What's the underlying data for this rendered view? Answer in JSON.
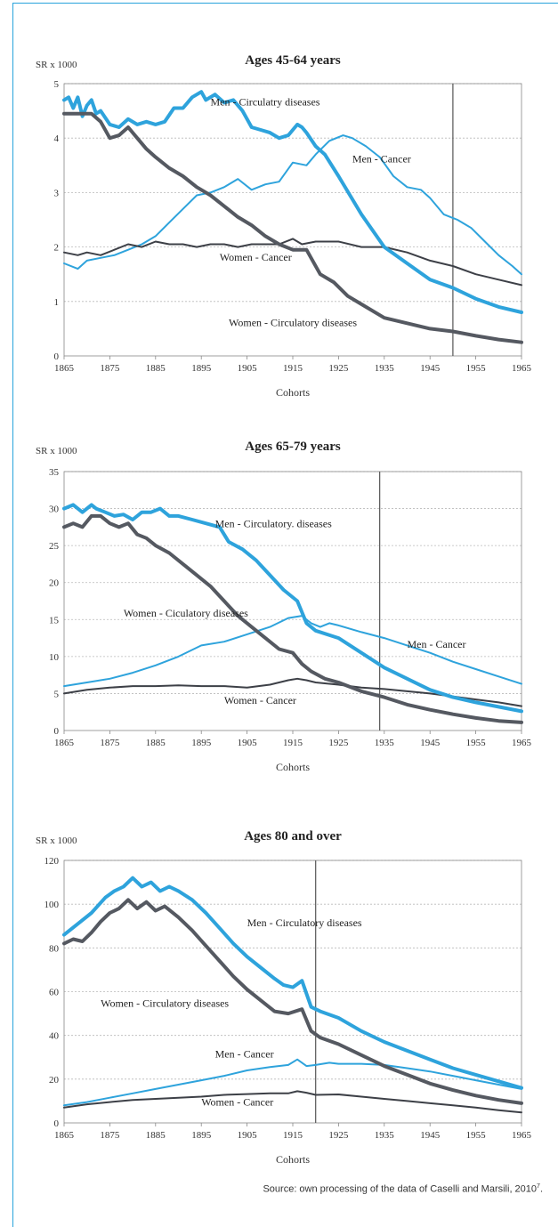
{
  "source_text": "Source: own processing of the data of Caselli and Marsili, 2010",
  "source_sup": "7",
  "colors": {
    "men_circulatory": "#2ea3dc",
    "men_cancer": "#2ea3dc",
    "women_circulatory": "#555961",
    "women_cancer": "#3d4047",
    "axis": "#888888",
    "grid": "#b9b9b9",
    "marker_line": "#555555",
    "frame": "#29a3dc"
  },
  "chart_data": [
    {
      "type": "line",
      "title": "Ages 45-64 years",
      "ylabel": "SR x 1000",
      "xlabel": "Cohorts",
      "xlim": [
        1865,
        1965
      ],
      "ylim": [
        0,
        5
      ],
      "yticks": [
        "0",
        "1",
        "2",
        "3",
        "4",
        "5"
      ],
      "xticks": [
        "1865",
        "1875",
        "1885",
        "1895",
        "1905",
        "1915",
        "1925",
        "1935",
        "1945",
        "1955",
        "1965"
      ],
      "grid": true,
      "vline_x": 1950,
      "series": [
        {
          "name": "Men - Circulatry diseases",
          "style": "thick",
          "color": "#2ea3dc",
          "x": [
            1865,
            1866,
            1867,
            1868,
            1869,
            1870,
            1871,
            1872,
            1873,
            1875,
            1877,
            1879,
            1881,
            1883,
            1885,
            1887,
            1889,
            1891,
            1893,
            1895,
            1896,
            1898,
            1900,
            1902,
            1904,
            1906,
            1908,
            1910,
            1912,
            1914,
            1916,
            1917,
            1918,
            1920,
            1922,
            1925,
            1930,
            1935,
            1940,
            1945,
            1950,
            1955,
            1960,
            1965
          ],
          "y": [
            4.7,
            4.75,
            4.55,
            4.75,
            4.4,
            4.6,
            4.7,
            4.45,
            4.5,
            4.25,
            4.2,
            4.35,
            4.25,
            4.3,
            4.25,
            4.3,
            4.55,
            4.55,
            4.75,
            4.85,
            4.7,
            4.8,
            4.65,
            4.7,
            4.5,
            4.2,
            4.15,
            4.1,
            4.0,
            4.05,
            4.25,
            4.2,
            4.1,
            3.85,
            3.7,
            3.3,
            2.6,
            2.0,
            1.7,
            1.4,
            1.25,
            1.05,
            0.9,
            0.8
          ]
        },
        {
          "name": "Men - Cancer",
          "style": "thin",
          "color": "#2ea3dc",
          "x": [
            1865,
            1868,
            1870,
            1873,
            1876,
            1879,
            1882,
            1885,
            1888,
            1891,
            1894,
            1897,
            1900,
            1903,
            1906,
            1909,
            1912,
            1915,
            1918,
            1920,
            1923,
            1926,
            1928,
            1931,
            1934,
            1937,
            1940,
            1943,
            1945,
            1948,
            1951,
            1954,
            1957,
            1960,
            1963,
            1965
          ],
          "y": [
            1.7,
            1.6,
            1.75,
            1.8,
            1.85,
            1.95,
            2.05,
            2.2,
            2.45,
            2.7,
            2.95,
            3.0,
            3.1,
            3.25,
            3.05,
            3.15,
            3.2,
            3.55,
            3.5,
            3.7,
            3.95,
            4.05,
            4.0,
            3.85,
            3.65,
            3.3,
            3.1,
            3.05,
            2.9,
            2.6,
            2.5,
            2.35,
            2.1,
            1.85,
            1.65,
            1.5
          ]
        },
        {
          "name": "Women - Circulatory diseases",
          "style": "thick",
          "color": "#555961",
          "x": [
            1865,
            1868,
            1871,
            1873,
            1875,
            1877,
            1879,
            1881,
            1883,
            1885,
            1888,
            1891,
            1894,
            1897,
            1900,
            1903,
            1906,
            1909,
            1912,
            1915,
            1918,
            1921,
            1924,
            1927,
            1930,
            1935,
            1940,
            1945,
            1950,
            1955,
            1960,
            1965
          ],
          "y": [
            4.45,
            4.45,
            4.45,
            4.3,
            4.0,
            4.05,
            4.2,
            4.0,
            3.8,
            3.65,
            3.45,
            3.3,
            3.1,
            2.95,
            2.75,
            2.55,
            2.4,
            2.2,
            2.05,
            1.95,
            1.95,
            1.5,
            1.35,
            1.1,
            0.95,
            0.7,
            0.6,
            0.5,
            0.45,
            0.37,
            0.3,
            0.25
          ]
        },
        {
          "name": "Women - Cancer",
          "style": "thin",
          "color": "#3d4047",
          "x": [
            1865,
            1868,
            1870,
            1873,
            1876,
            1879,
            1882,
            1885,
            1888,
            1891,
            1894,
            1897,
            1900,
            1903,
            1906,
            1909,
            1912,
            1915,
            1917,
            1920,
            1925,
            1930,
            1935,
            1940,
            1945,
            1950,
            1955,
            1960,
            1965
          ],
          "y": [
            1.9,
            1.85,
            1.9,
            1.85,
            1.95,
            2.05,
            2.0,
            2.1,
            2.05,
            2.05,
            2.0,
            2.05,
            2.05,
            2.0,
            2.05,
            2.05,
            2.05,
            2.15,
            2.05,
            2.1,
            2.1,
            2.0,
            2.0,
            1.9,
            1.75,
            1.65,
            1.5,
            1.4,
            1.3
          ]
        }
      ],
      "annotations": [
        {
          "text": "Men - Circulatry diseases",
          "x": 1897,
          "y": 4.6
        },
        {
          "text": "Men - Cancer",
          "x": 1928,
          "y": 3.55
        },
        {
          "text": "Women - Cancer",
          "x": 1899,
          "y": 1.75
        },
        {
          "text": "Women - Circulatory diseases",
          "x": 1901,
          "y": 0.55
        }
      ]
    },
    {
      "type": "line",
      "title": "Ages 65-79 years",
      "ylabel": "SR x 1000",
      "xlabel": "Cohorts",
      "xlim": [
        1865,
        1965
      ],
      "ylim": [
        0,
        35
      ],
      "yticks": [
        "0",
        "5",
        "10",
        "15",
        "20",
        "25",
        "30",
        "35"
      ],
      "xticks": [
        "1865",
        "1875",
        "1885",
        "1895",
        "1905",
        "1915",
        "1925",
        "1935",
        "1945",
        "1955",
        "1965"
      ],
      "grid": true,
      "vline_x": 1934,
      "series": [
        {
          "name": "Men - Circulatory. diseases",
          "style": "thick",
          "color": "#2ea3dc",
          "x": [
            1865,
            1867,
            1869,
            1871,
            1872,
            1874,
            1876,
            1878,
            1880,
            1882,
            1884,
            1886,
            1888,
            1890,
            1893,
            1896,
            1899,
            1901,
            1904,
            1907,
            1910,
            1913,
            1916,
            1918,
            1920,
            1925,
            1930,
            1935,
            1940,
            1945,
            1950,
            1955,
            1960,
            1965
          ],
          "y": [
            30,
            30.5,
            29.5,
            30.5,
            30,
            29.5,
            29,
            29.2,
            28.5,
            29.5,
            29.5,
            30,
            29,
            29,
            28.5,
            28,
            27.5,
            25.5,
            24.5,
            23,
            21,
            19,
            17.5,
            14.5,
            13.5,
            12.5,
            10.5,
            8.5,
            7,
            5.5,
            4.5,
            3.8,
            3.2,
            2.6
          ]
        },
        {
          "name": "Men - Cancer",
          "style": "thin",
          "color": "#2ea3dc",
          "x": [
            1865,
            1870,
            1875,
            1880,
            1885,
            1890,
            1895,
            1900,
            1905,
            1910,
            1914,
            1917,
            1919,
            1921,
            1923,
            1925,
            1930,
            1935,
            1940,
            1945,
            1950,
            1955,
            1960,
            1965
          ],
          "y": [
            6,
            6.5,
            7,
            7.8,
            8.8,
            10,
            11.5,
            12,
            13,
            14,
            15.2,
            15.5,
            14.5,
            14,
            14.5,
            14.2,
            13.3,
            12.5,
            11.5,
            10.5,
            9.3,
            8.3,
            7.3,
            6.3
          ]
        },
        {
          "name": "Women - Ciculatory diseases",
          "style": "thick",
          "color": "#555961",
          "x": [
            1865,
            1867,
            1869,
            1871,
            1873,
            1875,
            1877,
            1879,
            1881,
            1883,
            1885,
            1888,
            1891,
            1894,
            1897,
            1900,
            1903,
            1906,
            1909,
            1912,
            1915,
            1917,
            1919,
            1922,
            1925,
            1930,
            1935,
            1940,
            1945,
            1950,
            1955,
            1960,
            1965
          ],
          "y": [
            27.5,
            28,
            27.5,
            29,
            29,
            28,
            27.5,
            28,
            26.5,
            26,
            25,
            24,
            22.5,
            21,
            19.5,
            17.5,
            15.5,
            14,
            12.5,
            11,
            10.5,
            9,
            8,
            7,
            6.5,
            5.3,
            4.5,
            3.5,
            2.8,
            2.2,
            1.7,
            1.3,
            1.1
          ]
        },
        {
          "name": "Women - Cancer",
          "style": "thin",
          "color": "#3d4047",
          "x": [
            1865,
            1870,
            1875,
            1880,
            1885,
            1890,
            1895,
            1900,
            1905,
            1910,
            1914,
            1916,
            1918,
            1920,
            1925,
            1930,
            1935,
            1940,
            1945,
            1950,
            1955,
            1960,
            1965
          ],
          "y": [
            5,
            5.5,
            5.8,
            6,
            6,
            6.1,
            6,
            6,
            5.8,
            6.2,
            6.8,
            7,
            6.8,
            6.5,
            6.2,
            5.8,
            5.6,
            5.3,
            5,
            4.6,
            4.2,
            3.8,
            3.3
          ]
        }
      ],
      "annotations": [
        {
          "text": "Men - Circulatory. diseases",
          "x": 1898,
          "y": 27.5
        },
        {
          "text": "Women - Ciculatory diseases",
          "x": 1878,
          "y": 15.4
        },
        {
          "text": "Men - Cancer",
          "x": 1940,
          "y": 11.2
        },
        {
          "text": "Women - Cancer",
          "x": 1900,
          "y": 3.6
        }
      ]
    },
    {
      "type": "line",
      "title": "Ages 80 and over",
      "ylabel": "SR x 1000",
      "xlabel": "Cohorts",
      "xlim": [
        1865,
        1965
      ],
      "ylim": [
        0,
        120
      ],
      "yticks": [
        "0",
        "20",
        "40",
        "60",
        "80",
        "100",
        "120"
      ],
      "xticks": [
        "1865",
        "1875",
        "1885",
        "1895",
        "1905",
        "1915",
        "1925",
        "1935",
        "1945",
        "1955",
        "1965"
      ],
      "grid": true,
      "vline_x": 1920,
      "series": [
        {
          "name": "Men - Circulatory diseases",
          "style": "thick",
          "color": "#2ea3dc",
          "x": [
            1865,
            1868,
            1871,
            1874,
            1876,
            1878,
            1880,
            1882,
            1884,
            1886,
            1888,
            1890,
            1893,
            1896,
            1899,
            1902,
            1905,
            1908,
            1911,
            1913,
            1915,
            1917,
            1919,
            1921,
            1925,
            1930,
            1935,
            1940,
            1945,
            1950,
            1955,
            1960,
            1965
          ],
          "y": [
            86,
            91,
            96,
            103,
            106,
            108,
            112,
            108,
            110,
            106,
            108,
            106,
            102,
            96,
            89,
            82,
            76,
            71,
            66,
            63,
            62,
            65,
            53,
            51,
            48,
            42,
            37,
            33,
            29,
            25,
            22,
            19,
            16
          ]
        },
        {
          "name": "Men - Cancer",
          "style": "thin",
          "color": "#2ea3dc",
          "x": [
            1865,
            1870,
            1875,
            1880,
            1885,
            1890,
            1895,
            1900,
            1905,
            1910,
            1914,
            1916,
            1918,
            1920,
            1923,
            1925,
            1930,
            1935,
            1940,
            1945,
            1950,
            1955,
            1960,
            1965
          ],
          "y": [
            8,
            9.5,
            11.5,
            13.5,
            15.5,
            17.5,
            19.5,
            21.5,
            24,
            25.5,
            26.5,
            29,
            26,
            26.5,
            27.5,
            27,
            27,
            26.5,
            25,
            23.5,
            21.5,
            19.5,
            17.5,
            15.5
          ]
        },
        {
          "name": "Women - Circulatory diseases",
          "style": "thick",
          "color": "#555961",
          "x": [
            1865,
            1867,
            1869,
            1871,
            1873,
            1875,
            1877,
            1879,
            1881,
            1883,
            1885,
            1887,
            1890,
            1893,
            1896,
            1899,
            1902,
            1905,
            1908,
            1911,
            1914,
            1917,
            1919,
            1921,
            1925,
            1930,
            1935,
            1940,
            1945,
            1950,
            1955,
            1960,
            1965
          ],
          "y": [
            82,
            84,
            83,
            87,
            92,
            96,
            98,
            102,
            98,
            101,
            97,
            99,
            94,
            88,
            81,
            74,
            67,
            61,
            56,
            51,
            50,
            52,
            42,
            39,
            36,
            31,
            26,
            22,
            18,
            15,
            12.5,
            10.5,
            9
          ]
        },
        {
          "name": "Women - Cancer",
          "style": "thin",
          "color": "#3d4047",
          "x": [
            1865,
            1870,
            1875,
            1880,
            1885,
            1890,
            1895,
            1900,
            1905,
            1910,
            1914,
            1916,
            1918,
            1920,
            1925,
            1930,
            1935,
            1940,
            1945,
            1950,
            1955,
            1960,
            1965
          ],
          "y": [
            7,
            8.5,
            9.5,
            10.5,
            11,
            11.5,
            12,
            12.8,
            13.2,
            13.5,
            13.5,
            14.5,
            13.8,
            12.8,
            13,
            12,
            11,
            10,
            9,
            8,
            7,
            5.8,
            4.8
          ]
        }
      ],
      "annotations": [
        {
          "text": "Men - Circulatory diseases",
          "x": 1905,
          "y": 90
        },
        {
          "text": "Women - Circulatory diseases",
          "x": 1873,
          "y": 53
        },
        {
          "text": "Men - Cancer",
          "x": 1898,
          "y": 30
        },
        {
          "text": "Women - Cancer",
          "x": 1895,
          "y": 8
        }
      ]
    }
  ]
}
